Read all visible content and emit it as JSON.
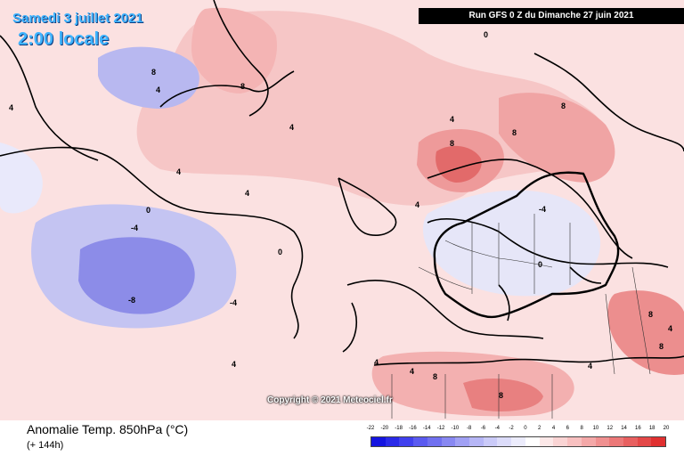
{
  "header": {
    "date_line": "Samedi 3 juillet 2021",
    "time_line": "2:00 locale",
    "run_info": "Run GFS 0 Z du Dimanche 27 juin 2021"
  },
  "map": {
    "copyright": "Copyright © 2021 Meteociel.fr",
    "contour_labels": [
      "0",
      "8",
      "4",
      "4",
      "8",
      "4",
      "4",
      "8",
      "4",
      "-4",
      "-8",
      "-4",
      "0",
      "4",
      "4",
      "8",
      "8",
      "4",
      "4",
      "-4",
      "0",
      "8",
      "4",
      "8",
      "8",
      "4",
      "4",
      "8",
      "0"
    ]
  },
  "footer": {
    "title": "Anomalie Temp. 850hPa (°C)",
    "forecast": "(+ 144h)"
  },
  "legend": {
    "labels": [
      "-22",
      "-20",
      "-18",
      "-16",
      "-14",
      "-12",
      "-10",
      "-8",
      "-6",
      "-4",
      "-2",
      "0",
      "2",
      "4",
      "6",
      "8",
      "10",
      "12",
      "14",
      "16",
      "18",
      "20"
    ],
    "colors": [
      "#1414e0",
      "#2a2ae8",
      "#4040ee",
      "#5a5af0",
      "#7070f0",
      "#8888f2",
      "#a0a0f4",
      "#b6b6f6",
      "#cacaf8",
      "#dcdcfa",
      "#ececfc",
      "#ffffff",
      "#fce8e8",
      "#fad4d4",
      "#f8c0c0",
      "#f4a8a8",
      "#f09090",
      "#ec7878",
      "#e86060",
      "#e44848",
      "#e03030"
    ]
  }
}
